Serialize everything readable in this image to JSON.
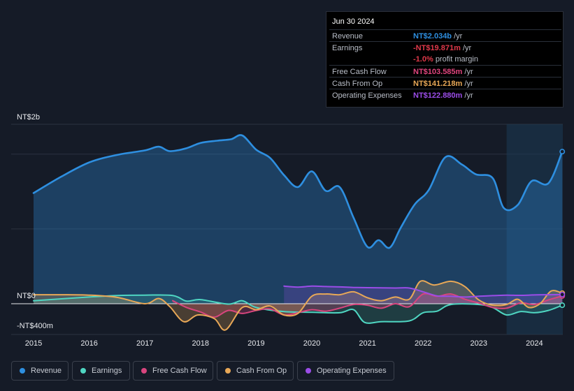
{
  "tooltip": {
    "date": "Jun 30 2024",
    "rows": [
      {
        "label": "Revenue",
        "value": "NT$2.034b",
        "unit": "/yr",
        "color": "#2e8fe0"
      },
      {
        "label": "Earnings",
        "value": "-NT$19.871m",
        "unit": "/yr",
        "color": "#e0394a"
      },
      {
        "label": "",
        "value": "-1.0%",
        "unit": "profit margin",
        "color": "#e0394a"
      },
      {
        "label": "Free Cash Flow",
        "value": "NT$103.585m",
        "unit": "/yr",
        "color": "#e0457e"
      },
      {
        "label": "Cash From Op",
        "value": "NT$141.218m",
        "unit": "/yr",
        "color": "#e8a857"
      },
      {
        "label": "Operating Expenses",
        "value": "NT$122.880m",
        "unit": "/yr",
        "color": "#9b4de8"
      }
    ]
  },
  "legend": [
    {
      "label": "Revenue",
      "color": "#2e8fe0"
    },
    {
      "label": "Earnings",
      "color": "#4fd6c2"
    },
    {
      "label": "Free Cash Flow",
      "color": "#d8457e"
    },
    {
      "label": "Cash From Op",
      "color": "#e8a857"
    },
    {
      "label": "Operating Expenses",
      "color": "#9b4de8"
    }
  ],
  "chart_data": {
    "type": "area",
    "y_unit": "NT$ millions",
    "ylim": [
      -400,
      2400
    ],
    "y_tick_labels": [
      {
        "value": 2000,
        "label": "NT$2b"
      },
      {
        "value": 0,
        "label": "NT$0"
      },
      {
        "value": -400,
        "label": "-NT$400m"
      }
    ],
    "x_tick_labels": [
      "2015",
      "2016",
      "2017",
      "2018",
      "2019",
      "2020",
      "2021",
      "2022",
      "2023",
      "2024"
    ],
    "xlim": [
      2014.6,
      2024.5
    ],
    "highlight_start": 2023.5,
    "series": [
      {
        "name": "Revenue",
        "color": "#2e8fe0",
        "fill": true,
        "points": [
          [
            2015.0,
            1480
          ],
          [
            2015.5,
            1700
          ],
          [
            2016.0,
            1890
          ],
          [
            2016.5,
            1990
          ],
          [
            2017.0,
            2050
          ],
          [
            2017.25,
            2100
          ],
          [
            2017.45,
            2040
          ],
          [
            2017.75,
            2080
          ],
          [
            2018.0,
            2150
          ],
          [
            2018.3,
            2180
          ],
          [
            2018.55,
            2200
          ],
          [
            2018.75,
            2250
          ],
          [
            2019.0,
            2060
          ],
          [
            2019.25,
            1950
          ],
          [
            2019.5,
            1720
          ],
          [
            2019.75,
            1560
          ],
          [
            2020.0,
            1770
          ],
          [
            2020.25,
            1510
          ],
          [
            2020.5,
            1560
          ],
          [
            2020.75,
            1150
          ],
          [
            2021.0,
            760
          ],
          [
            2021.2,
            850
          ],
          [
            2021.4,
            750
          ],
          [
            2021.6,
            1020
          ],
          [
            2021.85,
            1330
          ],
          [
            2022.1,
            1520
          ],
          [
            2022.4,
            1960
          ],
          [
            2022.7,
            1860
          ],
          [
            2022.95,
            1730
          ],
          [
            2023.25,
            1680
          ],
          [
            2023.45,
            1280
          ],
          [
            2023.7,
            1320
          ],
          [
            2023.95,
            1640
          ],
          [
            2024.25,
            1610
          ],
          [
            2024.5,
            2034
          ]
        ]
      },
      {
        "name": "Earnings",
        "color": "#4fd6c2",
        "fill": true,
        "points": [
          [
            2015.0,
            40
          ],
          [
            2015.5,
            65
          ],
          [
            2016.0,
            90
          ],
          [
            2016.5,
            110
          ],
          [
            2017.0,
            115
          ],
          [
            2017.5,
            110
          ],
          [
            2017.75,
            35
          ],
          [
            2018.0,
            55
          ],
          [
            2018.5,
            -5
          ],
          [
            2018.75,
            40
          ],
          [
            2019.0,
            -50
          ],
          [
            2019.5,
            -105
          ],
          [
            2020.0,
            -115
          ],
          [
            2020.5,
            -120
          ],
          [
            2020.75,
            -80
          ],
          [
            2020.95,
            -250
          ],
          [
            2021.25,
            -240
          ],
          [
            2021.75,
            -230
          ],
          [
            2022.0,
            -120
          ],
          [
            2022.25,
            -100
          ],
          [
            2022.5,
            -10
          ],
          [
            2023.0,
            -10
          ],
          [
            2023.25,
            -50
          ],
          [
            2023.5,
            -150
          ],
          [
            2023.75,
            -105
          ],
          [
            2024.0,
            -120
          ],
          [
            2024.25,
            -90
          ],
          [
            2024.5,
            -20
          ]
        ]
      },
      {
        "name": "Free Cash Flow",
        "color": "#d8457e",
        "fill": true,
        "points": [
          [
            2017.5,
            40
          ],
          [
            2017.75,
            -50
          ],
          [
            2018.0,
            -110
          ],
          [
            2018.25,
            -180
          ],
          [
            2018.5,
            -90
          ],
          [
            2018.75,
            -130
          ],
          [
            2019.0,
            -90
          ],
          [
            2019.25,
            -70
          ],
          [
            2019.5,
            -150
          ],
          [
            2019.75,
            -120
          ],
          [
            2020.0,
            -80
          ],
          [
            2020.25,
            -100
          ],
          [
            2020.5,
            -60
          ],
          [
            2020.75,
            -10
          ],
          [
            2021.0,
            -20
          ],
          [
            2021.25,
            -60
          ],
          [
            2021.5,
            0
          ],
          [
            2021.75,
            -40
          ],
          [
            2022.0,
            130
          ],
          [
            2022.25,
            100
          ],
          [
            2022.5,
            130
          ],
          [
            2022.75,
            60
          ],
          [
            2023.0,
            10
          ],
          [
            2023.25,
            -50
          ],
          [
            2023.5,
            -60
          ],
          [
            2023.75,
            10
          ],
          [
            2024.0,
            -10
          ],
          [
            2024.25,
            50
          ],
          [
            2024.5,
            104
          ]
        ]
      },
      {
        "name": "Cash From Op",
        "color": "#e8a857",
        "fill": true,
        "points": [
          [
            2015.0,
            120
          ],
          [
            2015.5,
            120
          ],
          [
            2016.0,
            115
          ],
          [
            2016.5,
            85
          ],
          [
            2017.0,
            0
          ],
          [
            2017.25,
            70
          ],
          [
            2017.45,
            -40
          ],
          [
            2017.7,
            -240
          ],
          [
            2017.95,
            -150
          ],
          [
            2018.25,
            -200
          ],
          [
            2018.45,
            -350
          ],
          [
            2018.75,
            -50
          ],
          [
            2019.0,
            -80
          ],
          [
            2019.25,
            -30
          ],
          [
            2019.5,
            -150
          ],
          [
            2019.75,
            -130
          ],
          [
            2020.0,
            100
          ],
          [
            2020.25,
            130
          ],
          [
            2020.5,
            120
          ],
          [
            2020.75,
            160
          ],
          [
            2021.0,
            80
          ],
          [
            2021.25,
            40
          ],
          [
            2021.5,
            90
          ],
          [
            2021.75,
            60
          ],
          [
            2021.95,
            300
          ],
          [
            2022.2,
            250
          ],
          [
            2022.5,
            300
          ],
          [
            2022.75,
            230
          ],
          [
            2023.0,
            50
          ],
          [
            2023.25,
            -20
          ],
          [
            2023.5,
            -10
          ],
          [
            2023.7,
            60
          ],
          [
            2023.9,
            -50
          ],
          [
            2024.1,
            0
          ],
          [
            2024.3,
            170
          ],
          [
            2024.5,
            141
          ]
        ]
      },
      {
        "name": "Operating Expenses",
        "color": "#9b4de8",
        "fill": true,
        "points": [
          [
            2019.5,
            235
          ],
          [
            2019.75,
            222
          ],
          [
            2020.0,
            235
          ],
          [
            2020.25,
            230
          ],
          [
            2020.5,
            225
          ],
          [
            2020.75,
            218
          ],
          [
            2021.0,
            215
          ],
          [
            2021.5,
            210
          ],
          [
            2021.75,
            210
          ],
          [
            2022.0,
            160
          ],
          [
            2022.25,
            105
          ],
          [
            2022.5,
            100
          ],
          [
            2022.75,
            90
          ],
          [
            2023.0,
            100
          ],
          [
            2023.25,
            108
          ],
          [
            2023.5,
            115
          ],
          [
            2023.75,
            112
          ],
          [
            2024.0,
            118
          ],
          [
            2024.25,
            120
          ],
          [
            2024.5,
            123
          ]
        ]
      }
    ]
  }
}
